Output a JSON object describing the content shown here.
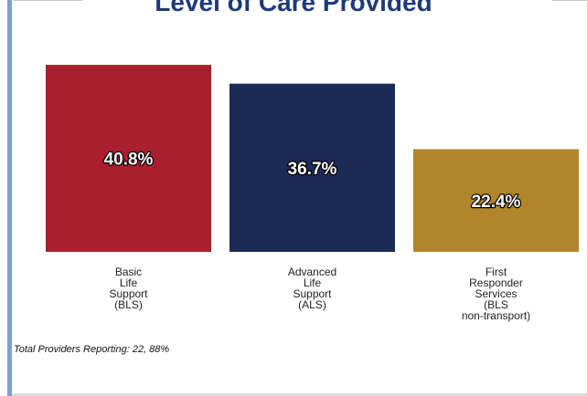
{
  "title": "Level of Care Provided",
  "footnote": "Total Providers Reporting: 22, 88%",
  "colors": {
    "bar_1": "#a91f2e",
    "bar_2": "#1b2a57",
    "bar_3": "#b0852b",
    "accent_rule": "#7f9fd0",
    "title": "#1f3a7a"
  },
  "chart_data": {
    "type": "bar",
    "title": "Level of Care Provided",
    "categories": [
      [
        "Basic",
        "Life",
        "Support",
        "(BLS)"
      ],
      [
        "Advanced",
        "Life",
        "Support",
        "(ALS)"
      ],
      [
        "First",
        "Responder",
        "Services",
        "(BLS",
        "non-transport)"
      ]
    ],
    "values": [
      40.8,
      36.7,
      22.4
    ],
    "data_labels": [
      "40.8%",
      "36.7%",
      "22.4%"
    ],
    "ylim": [
      0,
      45
    ],
    "grid": false,
    "legend": "none"
  }
}
